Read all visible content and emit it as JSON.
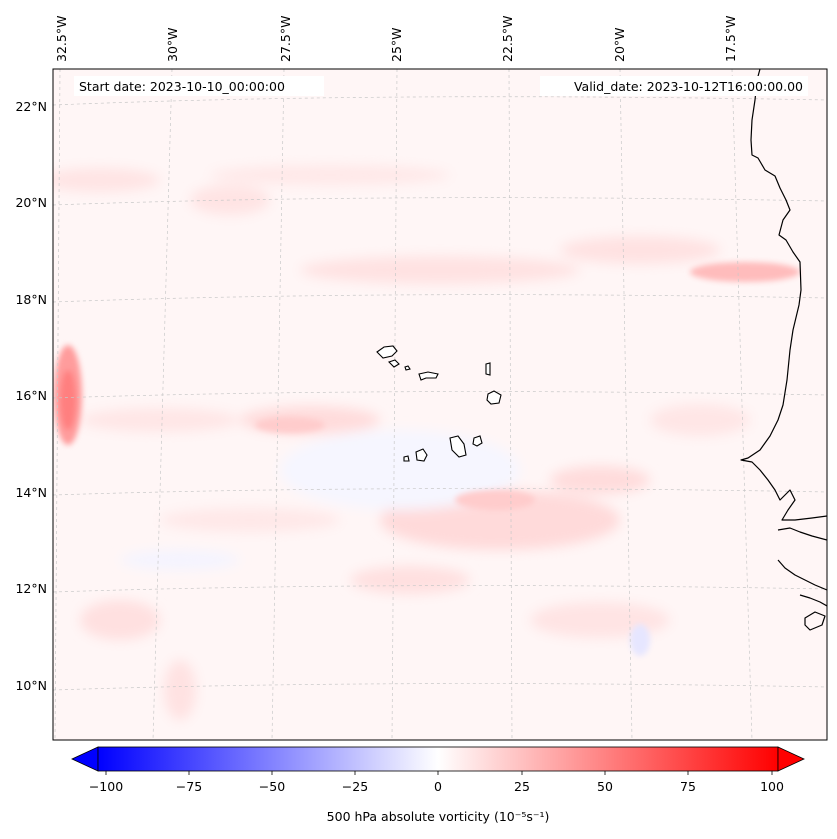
{
  "map": {
    "start_label": "Start date: 2023-10-10_00:00:00",
    "valid_label": "Valid_date: 2023-10-12T16:00:00.00",
    "field_title": "500 hPa absolute vorticity",
    "units_label": "(10⁻⁵s⁻¹)",
    "lon_ticks": [
      "32.5°W",
      "30°W",
      "27.5°W",
      "25°W",
      "22.5°W",
      "20°W",
      "17.5°W"
    ],
    "lat_ticks": [
      "22°N",
      "20°N",
      "18°N",
      "16°N",
      "14°N",
      "12°N",
      "10°N"
    ],
    "islands": [
      "Santo Antão",
      "São Vicente",
      "Santa Luzia",
      "São Nicolau",
      "Sal",
      "Boa Vista",
      "Maio",
      "Santiago",
      "Fogo",
      "Brava"
    ],
    "colorbar": {
      "min": -100,
      "max": 100,
      "ticks": [
        "−100",
        "−75",
        "−50",
        "−25",
        "0",
        "25",
        "50",
        "75",
        "100"
      ],
      "low_color": "#0000ff",
      "mid_color": "#ffffff",
      "high_color": "#ff0000"
    }
  }
}
